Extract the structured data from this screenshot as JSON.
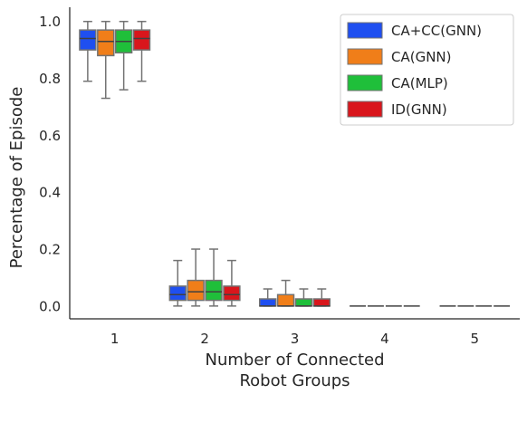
{
  "chart_data": {
    "type": "box",
    "xlabel_lines": [
      "Number of Connected",
      "Robot Groups"
    ],
    "ylabel": "Percentage of Episode",
    "categories": [
      "1",
      "2",
      "3",
      "4",
      "5"
    ],
    "yticks": [
      "0.0",
      "0.2",
      "0.4",
      "0.6",
      "0.8",
      "1.0"
    ],
    "ylim": [
      -0.045,
      1.05
    ],
    "series": [
      {
        "name": "CA+CC(GNN)",
        "color": "#1f4ff0",
        "boxes": [
          {
            "whislo": 0.79,
            "q1": 0.9,
            "med": 0.94,
            "q3": 0.97,
            "whishi": 1.0
          },
          {
            "whislo": 0.0,
            "q1": 0.02,
            "med": 0.04,
            "q3": 0.07,
            "whishi": 0.16
          },
          {
            "whislo": 0.0,
            "q1": 0.0,
            "med": 0.0,
            "q3": 0.025,
            "whishi": 0.06
          },
          {
            "whislo": 0.0,
            "q1": 0.0,
            "med": 0.0,
            "q3": 0.0,
            "whishi": 0.0
          },
          {
            "whislo": 0.0,
            "q1": 0.0,
            "med": 0.0,
            "q3": 0.0,
            "whishi": 0.0
          }
        ]
      },
      {
        "name": "CA(GNN)",
        "color": "#f07e19",
        "boxes": [
          {
            "whislo": 0.73,
            "q1": 0.88,
            "med": 0.93,
            "q3": 0.97,
            "whishi": 1.0
          },
          {
            "whislo": 0.0,
            "q1": 0.02,
            "med": 0.05,
            "q3": 0.09,
            "whishi": 0.2
          },
          {
            "whislo": 0.0,
            "q1": 0.0,
            "med": 0.0,
            "q3": 0.04,
            "whishi": 0.09
          },
          {
            "whislo": 0.0,
            "q1": 0.0,
            "med": 0.0,
            "q3": 0.0,
            "whishi": 0.0
          },
          {
            "whislo": 0.0,
            "q1": 0.0,
            "med": 0.0,
            "q3": 0.0,
            "whishi": 0.0
          }
        ]
      },
      {
        "name": "CA(MLP)",
        "color": "#1fbf3a",
        "boxes": [
          {
            "whislo": 0.76,
            "q1": 0.89,
            "med": 0.93,
            "q3": 0.97,
            "whishi": 1.0
          },
          {
            "whislo": 0.0,
            "q1": 0.02,
            "med": 0.05,
            "q3": 0.09,
            "whishi": 0.2
          },
          {
            "whislo": 0.0,
            "q1": 0.0,
            "med": 0.0,
            "q3": 0.025,
            "whishi": 0.06
          },
          {
            "whislo": 0.0,
            "q1": 0.0,
            "med": 0.0,
            "q3": 0.0,
            "whishi": 0.0
          },
          {
            "whislo": 0.0,
            "q1": 0.0,
            "med": 0.0,
            "q3": 0.0,
            "whishi": 0.0
          }
        ]
      },
      {
        "name": "ID(GNN)",
        "color": "#d9161c",
        "boxes": [
          {
            "whislo": 0.79,
            "q1": 0.9,
            "med": 0.94,
            "q3": 0.97,
            "whishi": 1.0
          },
          {
            "whislo": 0.0,
            "q1": 0.02,
            "med": 0.04,
            "q3": 0.07,
            "whishi": 0.16
          },
          {
            "whislo": 0.0,
            "q1": 0.0,
            "med": 0.0,
            "q3": 0.025,
            "whishi": 0.06
          },
          {
            "whislo": 0.0,
            "q1": 0.0,
            "med": 0.0,
            "q3": 0.0,
            "whishi": 0.0
          },
          {
            "whislo": 0.0,
            "q1": 0.0,
            "med": 0.0,
            "q3": 0.0,
            "whishi": 0.0
          }
        ]
      }
    ],
    "legend_position": "top-right",
    "grid": false,
    "line_color": "#737373"
  }
}
